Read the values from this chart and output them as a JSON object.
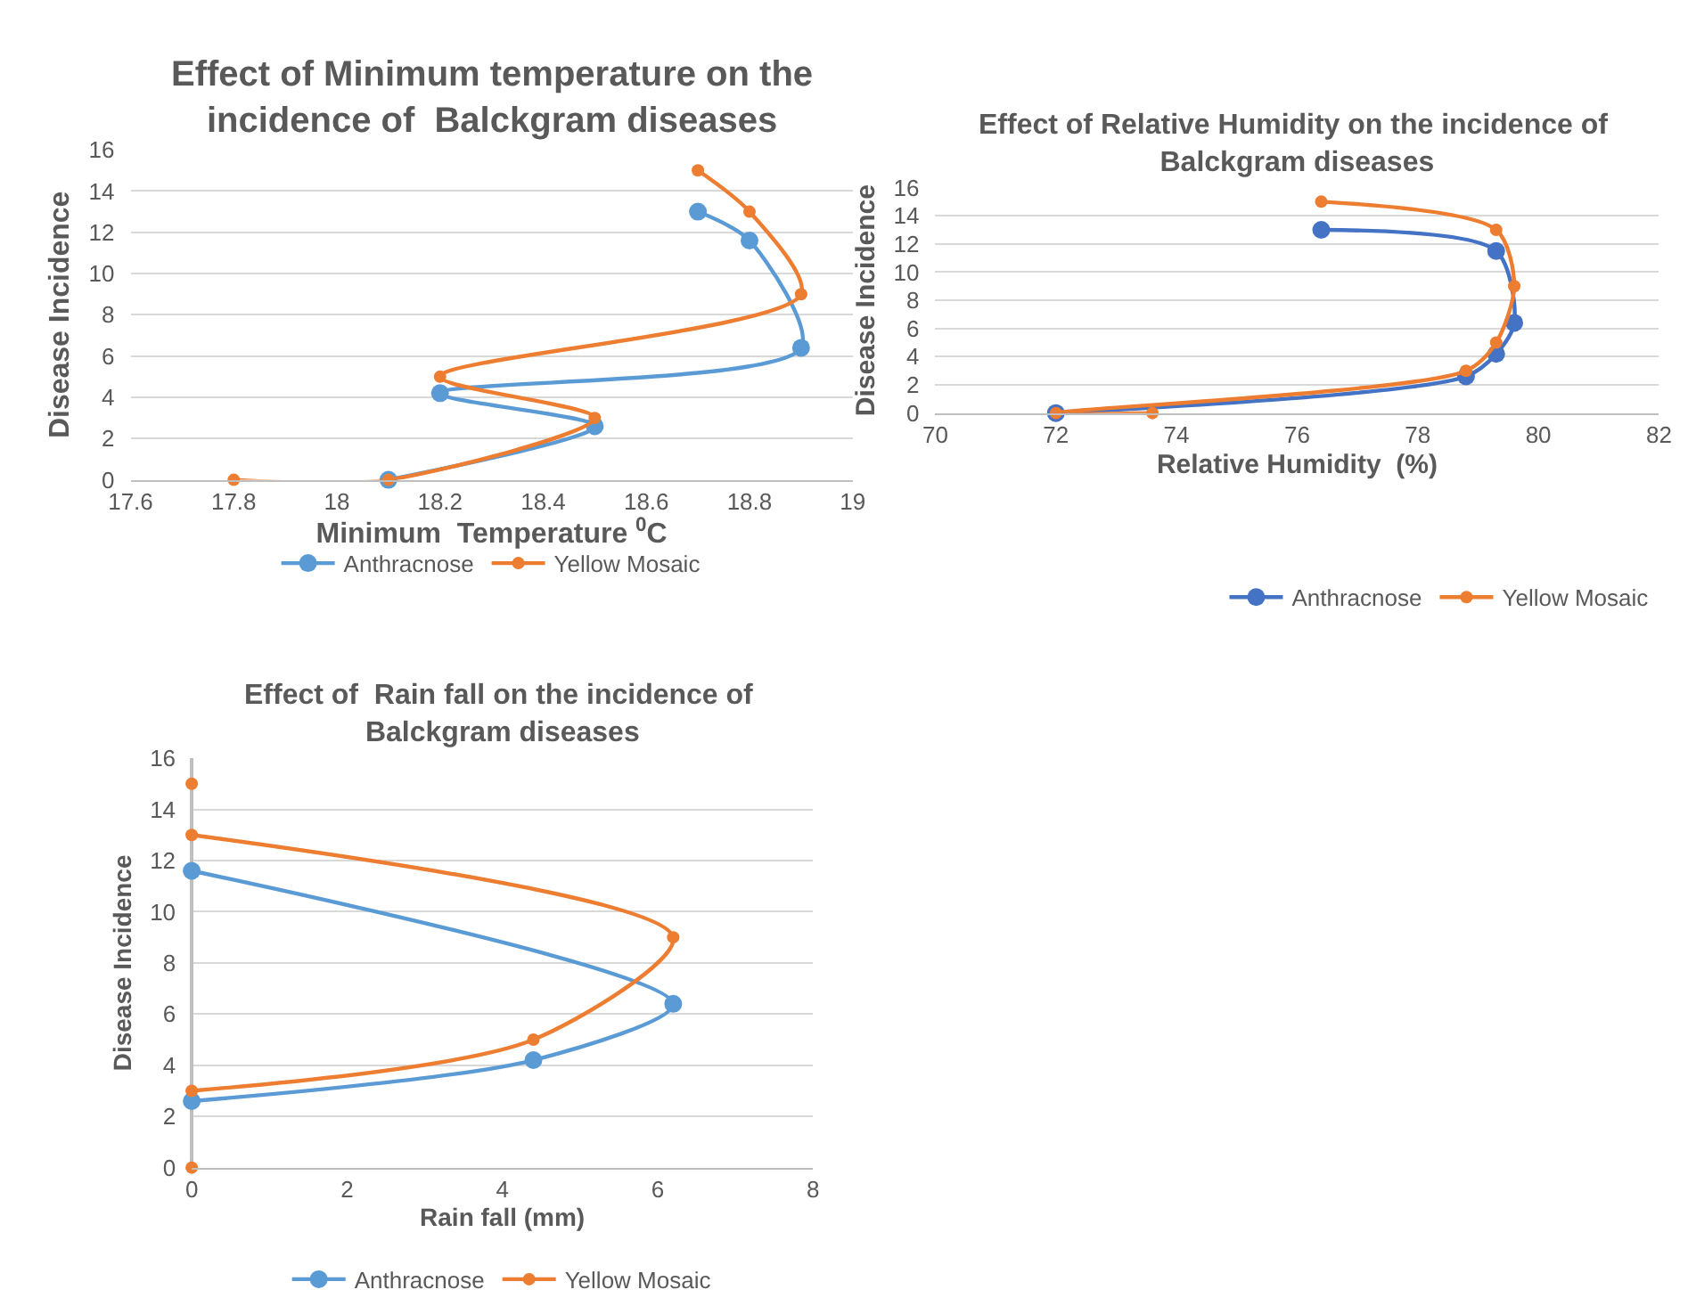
{
  "chart_data": [
    {
      "type": "line",
      "title": "Effect of Minimum temperature on the incidence of  Balckgram diseases",
      "xlabel": "Minimum  Temperature $^{0}$C",
      "ylabel": "Disease Incidence",
      "xlim": [
        17.6,
        19
      ],
      "xticks": [
        17.6,
        17.8,
        18,
        18.2,
        18.4,
        18.6,
        18.8,
        19
      ],
      "ylim": [
        0,
        16
      ],
      "yticks": [
        0,
        2,
        4,
        6,
        8,
        10,
        12,
        14,
        16
      ],
      "grid": "y",
      "legend": "bottom",
      "marker": "circle",
      "series": [
        {
          "name": "Anthracnose",
          "color": "#5b9bd5",
          "x": [
            18.7,
            18.8,
            18.9,
            18.2,
            18.5,
            18.1
          ],
          "values": [
            13,
            11.6,
            6.4,
            4.2,
            2.6,
            0
          ]
        },
        {
          "name": "Yellow Mosaic",
          "color": "#ed7d31",
          "x": [
            18.7,
            18.8,
            18.9,
            18.2,
            18.5,
            18.1,
            17.8
          ],
          "values": [
            15,
            13,
            9,
            5,
            3,
            0,
            0
          ]
        }
      ]
    },
    {
      "type": "line",
      "title": "Effect of Relative Humidity on the incidence of  Balckgram diseases",
      "xlabel": "Relative Humidity  (%)",
      "ylabel": "Disease Incidence",
      "xlim": [
        70,
        82
      ],
      "xticks": [
        70,
        72,
        74,
        76,
        78,
        80,
        82
      ],
      "ylim": [
        0,
        16
      ],
      "yticks": [
        0,
        2,
        4,
        6,
        8,
        10,
        12,
        14,
        16
      ],
      "grid": "y",
      "legend": "bottom right",
      "marker": "circle",
      "series": [
        {
          "name": "Anthracnose",
          "color": "#4472c4",
          "x": [
            76.4,
            79.3,
            79.6,
            79.3,
            78.8,
            72
          ],
          "values": [
            13,
            11.5,
            6.4,
            4.2,
            2.6,
            0
          ]
        },
        {
          "name": "Yellow Mosaic",
          "color": "#ed7d31",
          "x": [
            76.4,
            79.3,
            79.6,
            79.3,
            78.8,
            72,
            73.6
          ],
          "values": [
            15,
            13,
            9,
            5,
            3,
            0,
            0
          ]
        }
      ]
    },
    {
      "type": "line",
      "title": "Effect of  Rain fall on the incidence of  Balckgram diseases",
      "xlabel": "Rain fall (mm)",
      "ylabel": "Disease Incidence",
      "xlim": [
        0,
        8
      ],
      "xticks": [
        0,
        2,
        4,
        6,
        8
      ],
      "ylim": [
        0,
        16
      ],
      "yticks": [
        0,
        2,
        4,
        6,
        8,
        10,
        12,
        14,
        16
      ],
      "grid": "y",
      "legend": "bottom",
      "marker": "circle",
      "series": [
        {
          "name": "Anthracnose",
          "color": "#5b9bd5",
          "x": [
            0,
            6.2,
            4.4,
            0
          ],
          "values": [
            11.6,
            6.4,
            4.2,
            2.6
          ]
        },
        {
          "name": "Yellow Mosaic",
          "color": "#ed7d31",
          "x": [
            0,
            null,
            0,
            6.2,
            4.4,
            0,
            null,
            0
          ],
          "values": [
            15,
            null,
            13,
            9,
            5,
            3,
            null,
            0
          ]
        }
      ]
    }
  ]
}
